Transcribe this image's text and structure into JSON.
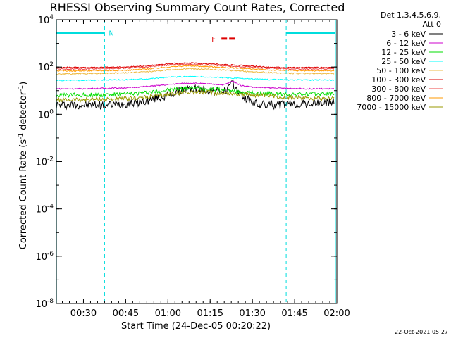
{
  "chart_data": {
    "type": "line",
    "title": "RHESSI Observing Summary Count Rates, Corrected",
    "xlabel": "Start Time (24-Dec-05 00:20:22)",
    "ylabel_main": "Corrected Count Rate (s",
    "ylabel_sup1": "-1",
    "ylabel_mid": " detector",
    "ylabel_sup2": "-1",
    "ylabel_end": ")",
    "x_range_min": [
      20.37,
      120.0
    ],
    "y_log_range": [
      -8,
      4
    ],
    "log_scale_y": true,
    "x_ticks": [
      {
        "t": 30,
        "label": "00:30"
      },
      {
        "t": 45,
        "label": "00:45"
      },
      {
        "t": 60,
        "label": "01:00"
      },
      {
        "t": 75,
        "label": "01:15"
      },
      {
        "t": 90,
        "label": "01:30"
      },
      {
        "t": 105,
        "label": "01:45"
      },
      {
        "t": 120,
        "label": "02:00"
      }
    ],
    "y_ticks": [
      {
        "exp": 4,
        "base": "10",
        "sup": "4"
      },
      {
        "exp": 2,
        "base": "10",
        "sup": "2"
      },
      {
        "exp": 0,
        "base": "10",
        "sup": "0"
      },
      {
        "exp": -2,
        "base": "10",
        "sup": "-2"
      },
      {
        "exp": -4,
        "base": "10",
        "sup": "-4"
      },
      {
        "exp": -6,
        "base": "10",
        "sup": "-6"
      },
      {
        "exp": -8,
        "base": "10",
        "sup": "-8"
      }
    ],
    "legend_header": [
      "Det 1,3,4,5,6,9,",
      "Att 0"
    ],
    "legend_position": "right",
    "series": [
      {
        "name": "3 - 6 keV",
        "color": "#000000",
        "x": [
          20.4,
          30,
          38,
          45,
          52,
          60,
          66,
          70,
          75,
          80,
          83,
          86,
          88,
          92,
          100,
          110,
          119
        ],
        "y_log": [
          0.4,
          0.4,
          0.4,
          0.45,
          0.55,
          0.8,
          1.05,
          1.1,
          1.0,
          0.95,
          1.3,
          0.8,
          0.65,
          0.4,
          0.4,
          0.45,
          0.5
        ]
      },
      {
        "name": "6 - 12 keV",
        "color": "#cc00cc",
        "x": [
          20.4,
          30,
          45,
          55,
          62,
          68,
          75,
          80,
          83,
          86,
          90,
          100,
          110,
          119
        ],
        "y_log": [
          1.08,
          1.08,
          1.12,
          1.2,
          1.28,
          1.32,
          1.28,
          1.25,
          1.4,
          1.22,
          1.15,
          1.1,
          1.08,
          1.08
        ]
      },
      {
        "name": "12 - 25 keV",
        "color": "#00dd00",
        "x": [
          20.4,
          30,
          45,
          55,
          62,
          68,
          75,
          80,
          88,
          95,
          100,
          110,
          119
        ],
        "y_log": [
          0.8,
          0.82,
          0.85,
          0.95,
          1.05,
          1.1,
          1.08,
          1.0,
          0.92,
          0.88,
          0.85,
          0.85,
          0.88
        ]
      },
      {
        "name": "25 - 50 keV",
        "color": "#00ffff",
        "x": [
          20.4,
          30,
          45,
          55,
          62,
          68,
          75,
          85,
          95,
          105,
          119
        ],
        "y_log": [
          1.43,
          1.44,
          1.46,
          1.52,
          1.58,
          1.6,
          1.57,
          1.52,
          1.47,
          1.45,
          1.45
        ]
      },
      {
        "name": "50 - 100 keV",
        "color": "#eebb44",
        "x": [
          20.4,
          30,
          45,
          55,
          62,
          68,
          75,
          85,
          95,
          105,
          119
        ],
        "y_log": [
          1.7,
          1.72,
          1.75,
          1.82,
          1.9,
          1.93,
          1.9,
          1.83,
          1.77,
          1.73,
          1.72
        ]
      },
      {
        "name": "100 - 300 keV",
        "color": "#dd0000",
        "x": [
          20.4,
          30,
          45,
          55,
          62,
          68,
          75,
          85,
          95,
          105,
          119
        ],
        "y_log": [
          1.98,
          1.98,
          2.0,
          2.08,
          2.15,
          2.17,
          2.13,
          2.07,
          2.0,
          1.98,
          1.98
        ]
      },
      {
        "name": "300 - 800 keV",
        "color": "#ee4444",
        "x": [
          20.4,
          30,
          45,
          55,
          62,
          68,
          75,
          85,
          95,
          105,
          119
        ],
        "y_log": [
          1.92,
          1.92,
          1.95,
          2.03,
          2.1,
          2.12,
          2.08,
          2.02,
          1.95,
          1.92,
          1.92
        ]
      },
      {
        "name": "800 - 7000 keV",
        "color": "#ff9900",
        "x": [
          20.4,
          30,
          45,
          55,
          62,
          68,
          75,
          85,
          95,
          105,
          119
        ],
        "y_log": [
          1.84,
          1.84,
          1.86,
          1.94,
          2.02,
          2.05,
          2.01,
          1.95,
          1.88,
          1.85,
          1.84
        ]
      },
      {
        "name": "7000 - 15000 keV",
        "color": "#999900",
        "x": [
          20.4,
          30,
          45,
          55,
          62,
          68,
          75,
          85,
          95,
          105,
          119
        ],
        "y_log": [
          0.6,
          0.62,
          0.65,
          0.75,
          0.88,
          0.95,
          0.92,
          0.85,
          0.78,
          0.7,
          0.68
        ]
      }
    ],
    "annotations": {
      "night_label": "N",
      "flare_label": "F",
      "night_intervals": [
        [
          20.4,
          37.5
        ],
        [
          102.0,
          119.5
        ]
      ],
      "flare_interval": [
        79.0,
        84.5
      ],
      "flare_y_log": 3.2,
      "night_bar_y_log": 3.45
    },
    "colors": {
      "night": "#00dddd",
      "flare": "#dd0000"
    },
    "timestamp": "22-Oct-2021 05:27"
  }
}
